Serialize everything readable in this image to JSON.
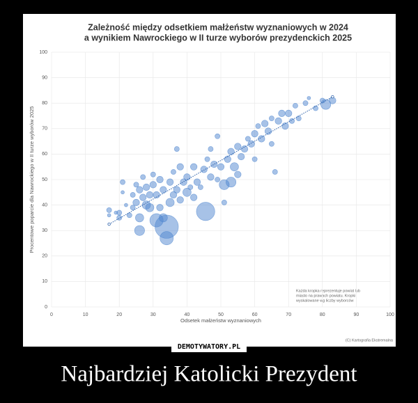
{
  "chart_data": {
    "type": "bubble",
    "title": [
      "Zależność między odsetkiem małżeństw wyznaniowych w 2024",
      "a wynikiem Nawrockiego w II turze wyborów prezydenckich 2025"
    ],
    "x_label": "Odsetek małżeństw wyznaniowych",
    "y_label": "Procentowe poparcie dla Nawrockiego w II turze wyborów 2025",
    "xlim": [
      0,
      100
    ],
    "ylim": [
      0,
      100
    ],
    "xticks": [
      0,
      10,
      20,
      30,
      40,
      50,
      60,
      70,
      80,
      90,
      100
    ],
    "yticks": [
      0,
      10,
      20,
      30,
      40,
      50,
      60,
      70,
      80,
      90,
      100
    ],
    "grid": true,
    "color": "#4f86cf",
    "x": [
      17,
      17,
      19,
      20,
      20,
      21,
      21,
      22,
      23,
      24,
      24,
      25,
      25,
      26,
      26,
      26,
      27,
      27,
      28,
      28,
      29,
      29,
      30,
      30,
      31,
      31,
      32,
      32,
      33,
      33,
      34,
      34,
      35,
      35,
      36,
      36,
      37,
      37,
      38,
      38,
      39,
      40,
      40,
      41,
      42,
      42,
      43,
      44,
      45,
      45.5,
      46,
      47,
      47,
      48,
      49,
      49,
      50,
      51,
      51,
      52,
      53,
      53,
      54,
      55,
      55,
      56,
      57,
      58,
      59,
      60,
      60,
      61,
      62,
      63,
      64,
      65,
      65,
      66,
      67,
      68,
      69,
      70,
      71,
      72,
      73,
      75,
      76,
      78,
      80,
      81,
      83
    ],
    "values": [
      38,
      36,
      37,
      37,
      35,
      49,
      45,
      40,
      36,
      39,
      44,
      48,
      41,
      46,
      30,
      35,
      51,
      43,
      47,
      40,
      39,
      44,
      52,
      48,
      34,
      44,
      50,
      39,
      35,
      46,
      31.5,
      27,
      49,
      41,
      44,
      53,
      46,
      62,
      42,
      55,
      49,
      45,
      51,
      47,
      43,
      55,
      49,
      47,
      54,
      37.5,
      58,
      51,
      62,
      56,
      67,
      50,
      55,
      48,
      41,
      58,
      49,
      61,
      55,
      63,
      52,
      59,
      62,
      66,
      64,
      68,
      58,
      71,
      66,
      72,
      69,
      74,
      64,
      53,
      73,
      76,
      71,
      76,
      73,
      79,
      74,
      80,
      82,
      78,
      81,
      79.5,
      81
    ],
    "sizes": [
      3,
      2,
      2,
      3,
      3,
      3,
      2,
      2,
      3,
      3,
      3,
      3,
      4,
      4,
      6,
      5,
      3,
      4,
      4,
      5,
      5,
      4,
      3,
      4,
      8,
      4,
      4,
      4,
      5,
      4,
      14,
      8,
      4,
      5,
      4,
      3,
      4,
      3,
      4,
      4,
      4,
      5,
      4,
      3,
      4,
      4,
      4,
      3,
      4,
      11,
      3,
      4,
      3,
      4,
      3,
      3,
      4,
      6,
      3,
      4,
      6,
      4,
      5,
      4,
      4,
      4,
      4,
      3,
      4,
      4,
      3,
      3,
      4,
      4,
      4,
      3,
      3,
      3,
      4,
      4,
      4,
      4,
      3,
      3,
      3,
      3,
      2,
      3,
      3,
      6,
      4
    ],
    "trendline": {
      "x": [
        17,
        83
      ],
      "y": [
        32.5,
        82.5
      ]
    },
    "note": [
      "Każda kropka reprezentuje powiat lub",
      "miasto na prawach powiatu. Kropki",
      "wyskalowane wg liczby wyborców"
    ],
    "credit": "(C) Kartografia Ekstremalna"
  },
  "watermark": "DEMOTYWATORY.PL",
  "caption": "Najbardziej Katolicki Prezydent"
}
